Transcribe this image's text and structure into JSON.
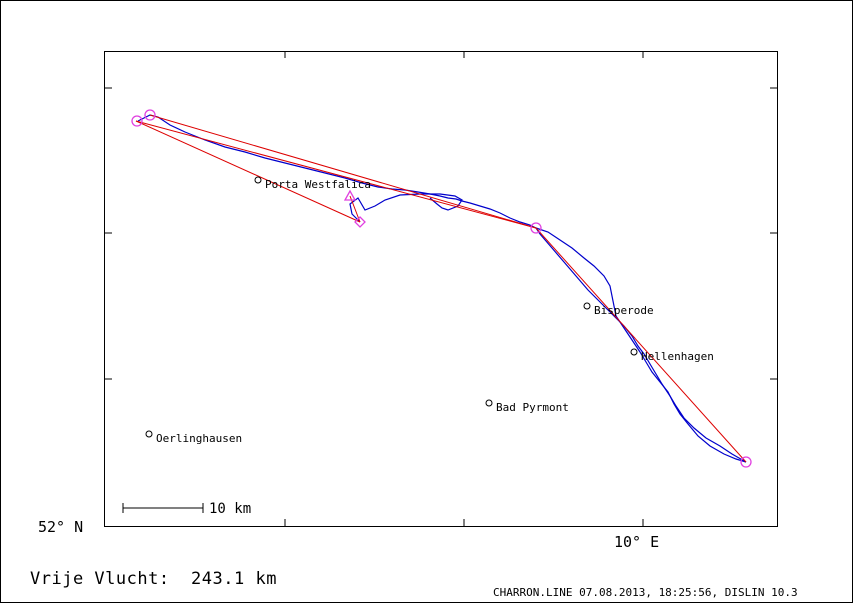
{
  "map": {
    "places": [
      {
        "name": "Porta Westfalica"
      },
      {
        "name": "Bisperode"
      },
      {
        "name": "Hellenhagen"
      },
      {
        "name": "Bad Pyrmont"
      },
      {
        "name": "Oerlinghausen"
      }
    ],
    "scale_label": "10 km",
    "lat_label": "52° N",
    "lon_label": "10° E",
    "colors": {
      "track": "#0000cc",
      "task": "#dd0000",
      "turnpoint": "#e040e0",
      "frame": "#000000"
    }
  },
  "footer": {
    "summary_label": "Vrije Vlucht:",
    "summary_value": "243.1 km",
    "program": "CHARRON.LINE 07.08.2013, 18:25:56, DISLIN 10.3"
  }
}
